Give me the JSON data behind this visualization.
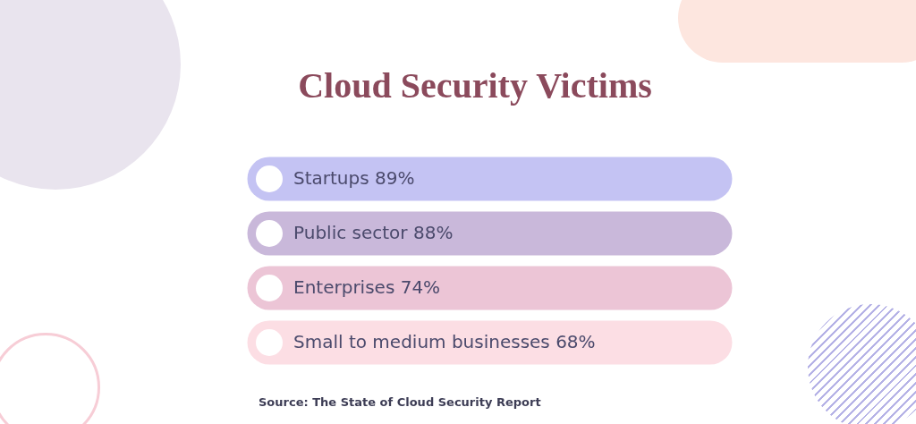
{
  "chart_data": {
    "type": "other",
    "title": "Cloud Security Victims",
    "categories": [
      "Startups",
      "Public sector",
      "Enterprises",
      "Small to medium businesses"
    ],
    "values": [
      89,
      88,
      74,
      68
    ],
    "value_labels": [
      "89%",
      "88%",
      "74%",
      "68%"
    ],
    "colors": [
      "#c4c3f3",
      "#c9b8da",
      "#ecc5d6",
      "#fcdee4"
    ],
    "annotations": [
      "Source: The State of Cloud Security Report"
    ]
  }
}
